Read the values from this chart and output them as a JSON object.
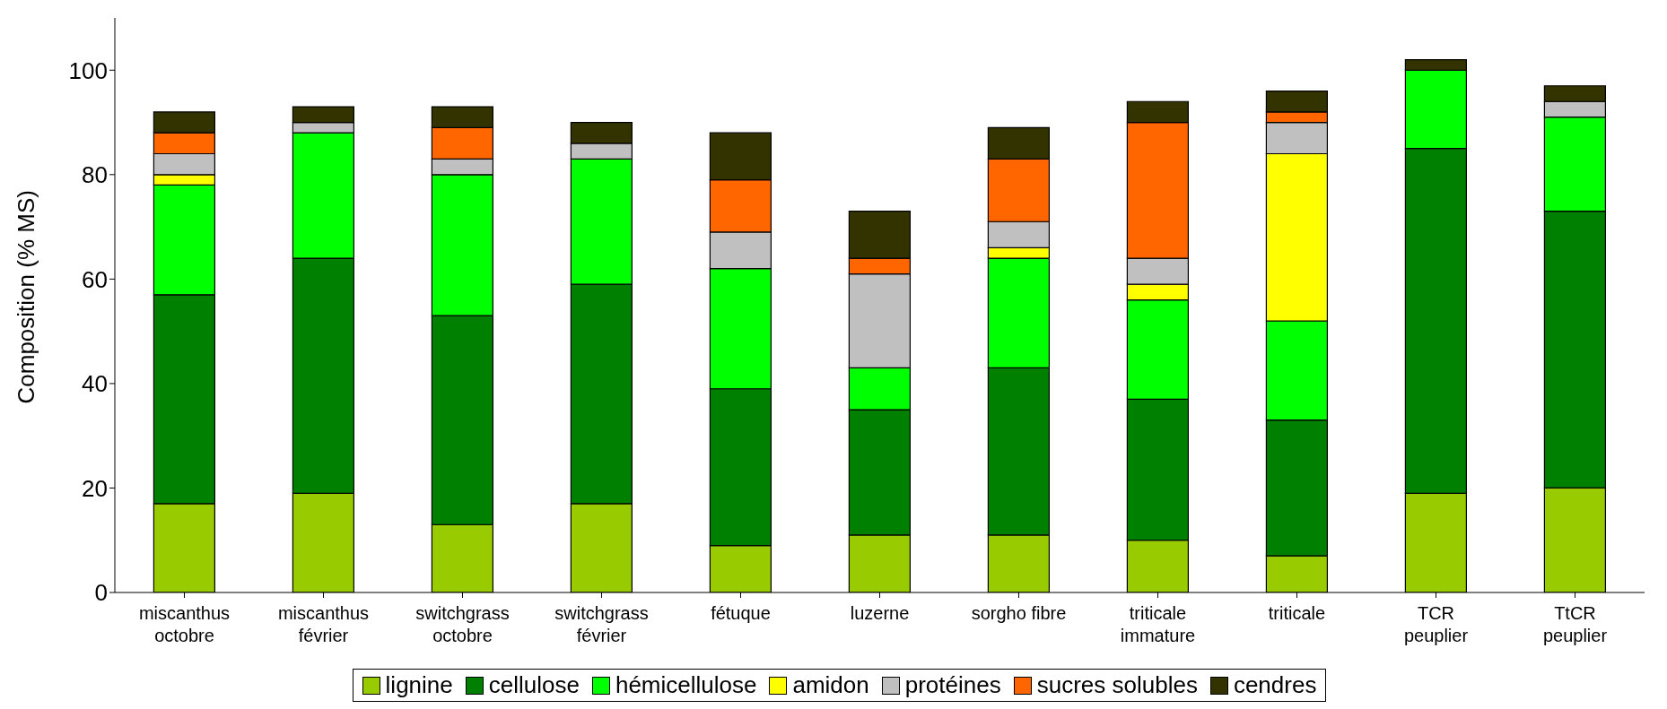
{
  "chart_data": {
    "type": "bar",
    "stacked": true,
    "ylabel": "Composition (% MS)",
    "categories": [
      "miscanthus\noctobre",
      "miscanthus\nfévrier",
      "switchgrass\noctobre",
      "switchgrass\nfévrier",
      "fétuque",
      "luzerne",
      "sorgho fibre",
      "triticale\nimmature",
      "triticale",
      "TCR\npeuplier",
      "TtCR\npeuplier"
    ],
    "series": [
      {
        "name": "lignine",
        "color": "#99cc00",
        "values": [
          17,
          19,
          13,
          17,
          9,
          11,
          11,
          10,
          7,
          19,
          20
        ]
      },
      {
        "name": "cellulose",
        "color": "#008000",
        "values": [
          40,
          45,
          40,
          42,
          30,
          24,
          32,
          27,
          26,
          66,
          53
        ]
      },
      {
        "name": "hémicellulose",
        "color": "#00ff00",
        "values": [
          21,
          24,
          27,
          24,
          23,
          8,
          21,
          19,
          19,
          15,
          18
        ]
      },
      {
        "name": "amidon",
        "color": "#ffff00",
        "values": [
          2,
          0,
          0,
          0,
          0,
          0,
          2,
          3,
          32,
          0,
          0
        ]
      },
      {
        "name": "protéines",
        "color": "#c0c0c0",
        "values": [
          4,
          2,
          3,
          3,
          7,
          18,
          5,
          5,
          6,
          0,
          3
        ]
      },
      {
        "name": "sucres solubles",
        "color": "#ff6600",
        "values": [
          4,
          0,
          6,
          0,
          10,
          3,
          12,
          26,
          2,
          0,
          0
        ]
      },
      {
        "name": "cendres",
        "color": "#333300",
        "values": [
          4,
          3,
          4,
          4,
          9,
          9,
          6,
          4,
          4,
          2,
          3
        ]
      }
    ],
    "ylim": [
      0,
      110
    ],
    "yticks": [
      0,
      20,
      40,
      60,
      80,
      100
    ],
    "grid": false,
    "legend": "bottom"
  }
}
